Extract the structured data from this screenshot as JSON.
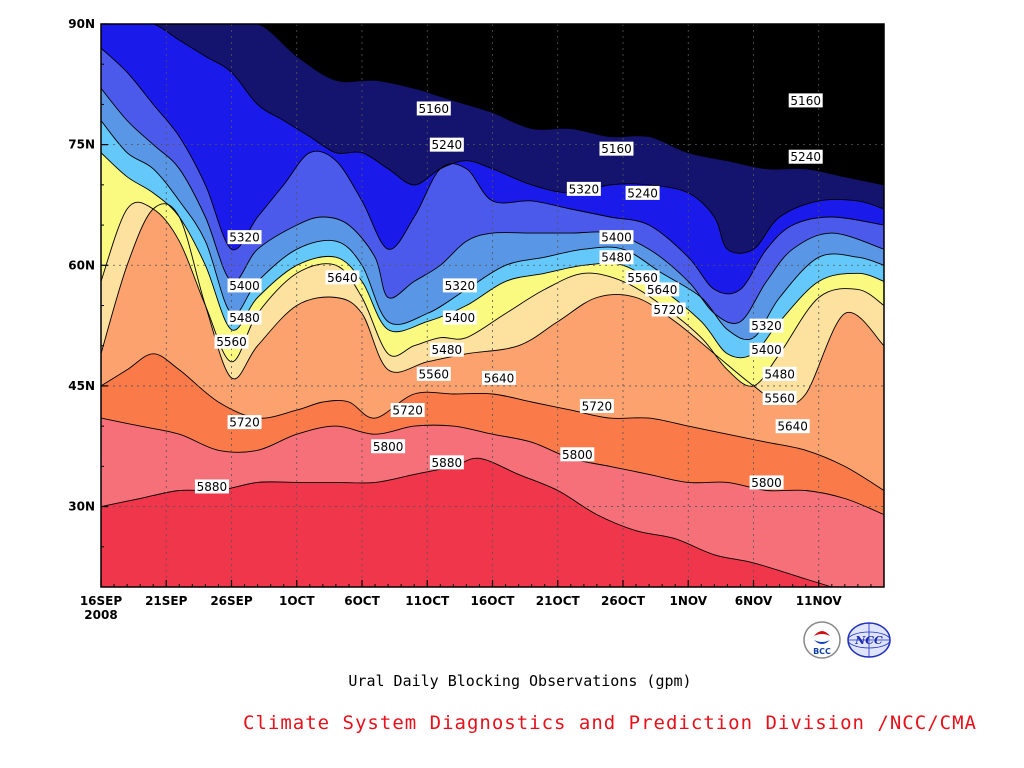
{
  "chart_data": {
    "type": "heatmap",
    "subtype": "filled-contour",
    "title": "Ural Daily Blocking Observations (gpm)",
    "credit": "Climate System Diagnostics and Prediction Division /NCC/CMA",
    "x_axis": {
      "ticks": [
        "16SEP",
        "21SEP",
        "26SEP",
        "1OCT",
        "6OCT",
        "11OCT",
        "16OCT",
        "21OCT",
        "26OCT",
        "1NOV",
        "6NOV",
        "11NOV"
      ],
      "year_label": "2008",
      "day_range": [
        0,
        60
      ]
    },
    "y_axis": {
      "ticks": [
        "30N",
        "45N",
        "60N",
        "75N",
        "90N"
      ],
      "tick_values": [
        30,
        45,
        60,
        75,
        90
      ],
      "range": [
        20,
        90
      ]
    },
    "levels": [
      5160,
      5240,
      5320,
      5400,
      5480,
      5560,
      5640,
      5720,
      5800,
      5880
    ],
    "fill_colors": [
      "#f0364a",
      "#f57078",
      "#fa7a4a",
      "#fba26e",
      "#fde19f",
      "#fafa80",
      "#64c8fa",
      "#5a96e6",
      "#4b5aeb",
      "#1a1aeb",
      "#14146e"
    ],
    "contours": {
      "5880": [
        [
          0,
          30
        ],
        [
          3,
          31
        ],
        [
          6,
          32
        ],
        [
          9,
          32
        ],
        [
          12,
          33
        ],
        [
          15,
          33
        ],
        [
          18,
          33
        ],
        [
          21,
          33
        ],
        [
          24,
          34
        ],
        [
          27,
          35
        ],
        [
          29,
          36
        ],
        [
          32,
          34
        ],
        [
          35,
          32
        ],
        [
          38,
          29
        ],
        [
          41,
          27
        ],
        [
          44,
          26
        ],
        [
          47,
          24
        ],
        [
          50,
          23
        ],
        [
          54,
          21
        ],
        [
          56,
          20
        ]
      ],
      "5800": [
        [
          0,
          41
        ],
        [
          3,
          40
        ],
        [
          6,
          39
        ],
        [
          9,
          37
        ],
        [
          12,
          37
        ],
        [
          15,
          39
        ],
        [
          18,
          40
        ],
        [
          21,
          39
        ],
        [
          24,
          40
        ],
        [
          27,
          40
        ],
        [
          30,
          39
        ],
        [
          33,
          38
        ],
        [
          36,
          36
        ],
        [
          39,
          35
        ],
        [
          42,
          34
        ],
        [
          45,
          33
        ],
        [
          48,
          33
        ],
        [
          51,
          32
        ],
        [
          54,
          32
        ],
        [
          57,
          31
        ],
        [
          60,
          29
        ]
      ],
      "5720": [
        [
          0,
          45
        ],
        [
          2,
          47
        ],
        [
          4,
          49
        ],
        [
          6,
          47
        ],
        [
          9,
          43
        ],
        [
          12,
          41
        ],
        [
          15,
          42
        ],
        [
          17,
          43
        ],
        [
          19,
          43
        ],
        [
          21,
          41
        ],
        [
          24,
          44
        ],
        [
          27,
          44
        ],
        [
          30,
          44
        ],
        [
          33,
          43
        ],
        [
          36,
          42
        ],
        [
          39,
          41
        ],
        [
          42,
          41
        ],
        [
          45,
          40
        ],
        [
          48,
          39
        ],
        [
          51,
          38
        ],
        [
          54,
          37
        ],
        [
          57,
          35
        ],
        [
          60,
          32
        ]
      ],
      "5640": [
        [
          0,
          49
        ],
        [
          2,
          60
        ],
        [
          4,
          67
        ],
        [
          6,
          66
        ],
        [
          8,
          55
        ],
        [
          10,
          46
        ],
        [
          12,
          50
        ],
        [
          15,
          55
        ],
        [
          18,
          56
        ],
        [
          20,
          54
        ],
        [
          22,
          47
        ],
        [
          25,
          48
        ],
        [
          28,
          49
        ],
        [
          32,
          50
        ],
        [
          35,
          53
        ],
        [
          38,
          56
        ],
        [
          41,
          56
        ],
        [
          44,
          53
        ],
        [
          47,
          49
        ],
        [
          50,
          45
        ],
        [
          52,
          43
        ],
        [
          54,
          44
        ],
        [
          57,
          54
        ],
        [
          60,
          50
        ]
      ],
      "5560": [
        [
          0,
          58
        ],
        [
          2,
          67
        ],
        [
          4,
          67
        ],
        [
          6,
          63
        ],
        [
          8,
          55
        ],
        [
          10,
          48
        ],
        [
          12,
          54
        ],
        [
          15,
          59
        ],
        [
          18,
          60
        ],
        [
          20,
          56
        ],
        [
          22,
          49
        ],
        [
          24,
          50
        ],
        [
          26,
          51
        ],
        [
          28,
          51
        ],
        [
          31,
          54
        ],
        [
          34,
          57
        ],
        [
          37,
          59
        ],
        [
          40,
          58
        ],
        [
          43,
          55
        ],
        [
          46,
          51
        ],
        [
          48,
          47
        ],
        [
          50,
          45
        ],
        [
          52,
          49
        ],
        [
          55,
          56
        ],
        [
          58,
          57
        ],
        [
          60,
          55
        ]
      ],
      "5480": [
        [
          0,
          74
        ],
        [
          2,
          71
        ],
        [
          4,
          69
        ],
        [
          6,
          66
        ],
        [
          8,
          60
        ],
        [
          10,
          52
        ],
        [
          12,
          56
        ],
        [
          15,
          60
        ],
        [
          18,
          61
        ],
        [
          20,
          58
        ],
        [
          22,
          52
        ],
        [
          25,
          53
        ],
        [
          28,
          55
        ],
        [
          31,
          58
        ],
        [
          34,
          59
        ],
        [
          37,
          60
        ],
        [
          40,
          60
        ],
        [
          43,
          57
        ],
        [
          46,
          53
        ],
        [
          48,
          49
        ],
        [
          50,
          49
        ],
        [
          52,
          53
        ],
        [
          55,
          58
        ],
        [
          58,
          59
        ],
        [
          60,
          58
        ]
      ],
      "5400": [
        [
          0,
          78
        ],
        [
          2,
          74
        ],
        [
          4,
          72
        ],
        [
          6,
          68
        ],
        [
          8,
          63
        ],
        [
          10,
          54
        ],
        [
          12,
          58
        ],
        [
          15,
          62
        ],
        [
          18,
          63
        ],
        [
          20,
          60
        ],
        [
          22,
          53
        ],
        [
          25,
          54
        ],
        [
          28,
          57
        ],
        [
          31,
          60
        ],
        [
          34,
          61
        ],
        [
          37,
          62
        ],
        [
          40,
          62
        ],
        [
          43,
          59
        ],
        [
          46,
          56
        ],
        [
          48,
          52
        ],
        [
          50,
          51
        ],
        [
          52,
          56
        ],
        [
          55,
          61
        ],
        [
          58,
          61
        ],
        [
          60,
          60
        ]
      ],
      "5320": [
        [
          0,
          82
        ],
        [
          2,
          78
        ],
        [
          4,
          75
        ],
        [
          6,
          72
        ],
        [
          8,
          66
        ],
        [
          10,
          58
        ],
        [
          12,
          62
        ],
        [
          15,
          65
        ],
        [
          17,
          66
        ],
        [
          19,
          65
        ],
        [
          21,
          61
        ],
        [
          22,
          56
        ],
        [
          24,
          58
        ],
        [
          26,
          60
        ],
        [
          28,
          63
        ],
        [
          30,
          64
        ],
        [
          33,
          64
        ],
        [
          36,
          64
        ],
        [
          39,
          64
        ],
        [
          42,
          62
        ],
        [
          45,
          58
        ],
        [
          47,
          54
        ],
        [
          49,
          53
        ],
        [
          51,
          58
        ],
        [
          53,
          62
        ],
        [
          56,
          64
        ],
        [
          60,
          62
        ]
      ],
      "5240": [
        [
          0,
          87
        ],
        [
          2,
          84
        ],
        [
          4,
          80
        ],
        [
          6,
          76
        ],
        [
          8,
          70
        ],
        [
          10,
          62
        ],
        [
          12,
          66
        ],
        [
          14,
          70
        ],
        [
          16,
          74
        ],
        [
          18,
          73
        ],
        [
          20,
          68
        ],
        [
          22,
          62
        ],
        [
          24,
          66
        ],
        [
          26,
          72
        ],
        [
          28,
          72
        ],
        [
          30,
          68
        ],
        [
          33,
          68
        ],
        [
          36,
          67
        ],
        [
          39,
          66
        ],
        [
          42,
          65
        ],
        [
          45,
          61
        ],
        [
          47,
          57
        ],
        [
          49,
          57
        ],
        [
          51,
          62
        ],
        [
          53,
          65
        ],
        [
          56,
          66
        ],
        [
          60,
          65
        ]
      ],
      "5160": [
        [
          0,
          90
        ],
        [
          2,
          90
        ],
        [
          4,
          90
        ],
        [
          6,
          88
        ],
        [
          8,
          86
        ],
        [
          10,
          84
        ],
        [
          12,
          80
        ],
        [
          14,
          78
        ],
        [
          16,
          76
        ],
        [
          18,
          74
        ],
        [
          20,
          74
        ],
        [
          22,
          72
        ],
        [
          24,
          70
        ],
        [
          26,
          72
        ],
        [
          28,
          73
        ],
        [
          30,
          72
        ],
        [
          33,
          70
        ],
        [
          36,
          69
        ],
        [
          39,
          70
        ],
        [
          42,
          70
        ],
        [
          45,
          69
        ],
        [
          47,
          66
        ],
        [
          48,
          62
        ],
        [
          50,
          62
        ],
        [
          52,
          66
        ],
        [
          55,
          68
        ],
        [
          58,
          68
        ],
        [
          60,
          67
        ]
      ],
      "5080": [
        [
          0,
          90
        ],
        [
          8,
          90
        ],
        [
          12,
          90
        ],
        [
          15,
          86
        ],
        [
          18,
          83
        ],
        [
          21,
          83
        ],
        [
          24,
          82
        ],
        [
          26,
          81
        ],
        [
          28,
          80
        ],
        [
          30,
          79
        ],
        [
          33,
          77
        ],
        [
          36,
          77
        ],
        [
          39,
          76
        ],
        [
          42,
          76
        ],
        [
          45,
          74
        ],
        [
          48,
          73
        ],
        [
          51,
          72
        ],
        [
          54,
          72
        ],
        [
          57,
          71
        ],
        [
          60,
          70
        ]
      ]
    },
    "labels": [
      {
        "text": "5160",
        "day": 25.5,
        "lat": 79.5
      },
      {
        "text": "5160",
        "day": 39.5,
        "lat": 74.5
      },
      {
        "text": "5160",
        "day": 54,
        "lat": 80.5
      },
      {
        "text": "5240",
        "day": 26.5,
        "lat": 75
      },
      {
        "text": "5240",
        "day": 41.5,
        "lat": 69
      },
      {
        "text": "5240",
        "day": 54,
        "lat": 73.5
      },
      {
        "text": "5320",
        "day": 11,
        "lat": 63.5
      },
      {
        "text": "5320",
        "day": 27.5,
        "lat": 57.5
      },
      {
        "text": "5320",
        "day": 37,
        "lat": 69.5
      },
      {
        "text": "5320",
        "day": 51,
        "lat": 52.5
      },
      {
        "text": "5400",
        "day": 11,
        "lat": 57.5
      },
      {
        "text": "5400",
        "day": 27.5,
        "lat": 53.5
      },
      {
        "text": "5400",
        "day": 39.5,
        "lat": 63.5
      },
      {
        "text": "5400",
        "day": 51,
        "lat": 49.5
      },
      {
        "text": "5480",
        "day": 11,
        "lat": 53.5
      },
      {
        "text": "5480",
        "day": 26.5,
        "lat": 49.5
      },
      {
        "text": "5480",
        "day": 39.5,
        "lat": 61
      },
      {
        "text": "5480",
        "day": 52,
        "lat": 46.5
      },
      {
        "text": "5560",
        "day": 10,
        "lat": 50.5
      },
      {
        "text": "5560",
        "day": 25.5,
        "lat": 46.5
      },
      {
        "text": "5560",
        "day": 41.5,
        "lat": 58.5
      },
      {
        "text": "5560",
        "day": 52,
        "lat": 43.5
      },
      {
        "text": "5640",
        "day": 18.5,
        "lat": 58.5
      },
      {
        "text": "5640",
        "day": 30.5,
        "lat": 46
      },
      {
        "text": "5640",
        "day": 43,
        "lat": 57
      },
      {
        "text": "5640",
        "day": 53,
        "lat": 40
      },
      {
        "text": "5720",
        "day": 11,
        "lat": 40.5
      },
      {
        "text": "5720",
        "day": 23.5,
        "lat": 42
      },
      {
        "text": "5720",
        "day": 38,
        "lat": 42.5
      },
      {
        "text": "5720",
        "day": 43.5,
        "lat": 54.5
      },
      {
        "text": "5800",
        "day": 22,
        "lat": 37.5
      },
      {
        "text": "5800",
        "day": 36.5,
        "lat": 36.5
      },
      {
        "text": "5800",
        "day": 51,
        "lat": 33
      },
      {
        "text": "5880",
        "day": 8.5,
        "lat": 32.5
      },
      {
        "text": "5880",
        "day": 26.5,
        "lat": 35.5
      }
    ],
    "grid": true,
    "grid_style": "dotted"
  },
  "logos": {
    "left": "BCC",
    "right": "NCC"
  }
}
